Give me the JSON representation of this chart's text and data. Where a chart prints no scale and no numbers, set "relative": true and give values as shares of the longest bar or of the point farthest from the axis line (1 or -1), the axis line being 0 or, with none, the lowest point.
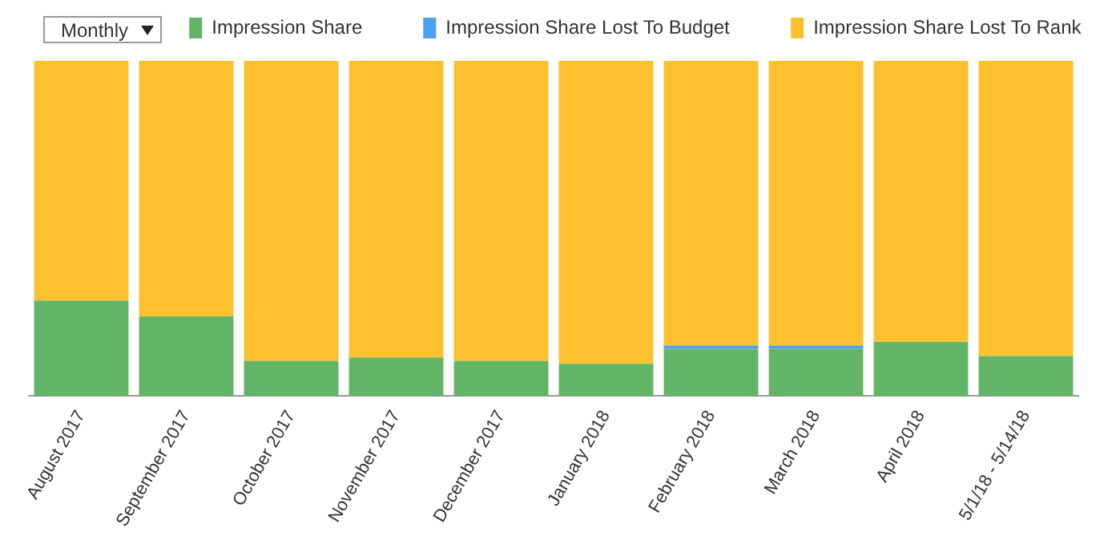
{
  "chart_data": {
    "type": "bar",
    "stacked": true,
    "relative": true,
    "legend": "top right",
    "grid": false,
    "annotations": [
      "Monthly"
    ],
    "categories": [
      "August 2017",
      "September 2017",
      "October 2017",
      "November 2017",
      "December 2017",
      "January 2018",
      "February 2018",
      "March 2018",
      "April 2018",
      "5/1/18 - 5/14/18"
    ],
    "series": [
      {
        "name": "Impression Share",
        "color": "#62b566",
        "values": [
          0.284,
          0.237,
          0.104,
          0.114,
          0.104,
          0.095,
          0.14,
          0.14,
          0.161,
          0.118
        ]
      },
      {
        "name": "Impression Share Lost To Budget",
        "color": "#4d9ff0",
        "values": [
          0,
          0,
          0,
          0,
          0,
          0,
          0.01,
          0.01,
          0,
          0
        ]
      },
      {
        "name": "Impression Share Lost To Rank",
        "color": "#fdc02f",
        "values": [
          0.716,
          0.763,
          0.896,
          0.886,
          0.896,
          0.905,
          0.85,
          0.85,
          0.839,
          0.882
        ]
      }
    ]
  }
}
